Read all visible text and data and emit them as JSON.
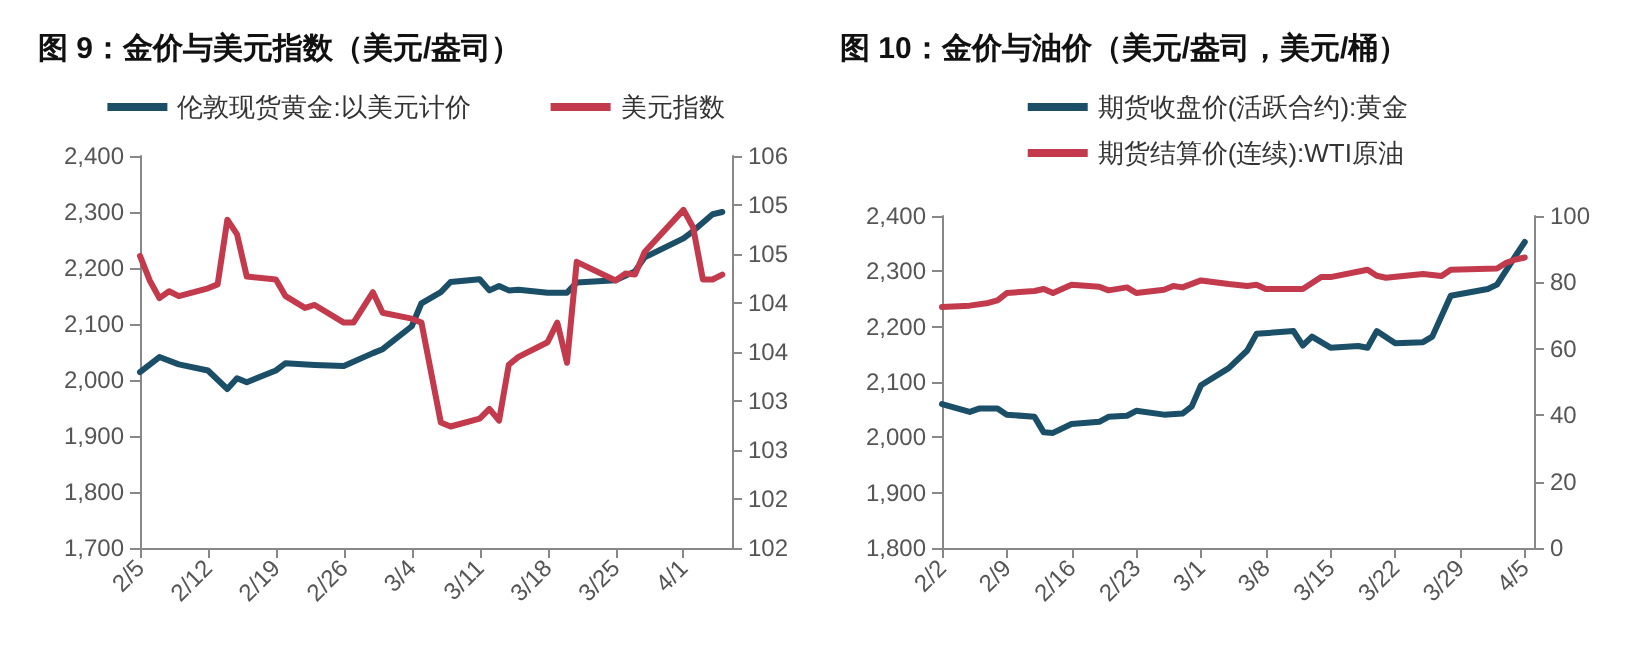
{
  "chart_data": [
    {
      "type": "line",
      "title": "图 9：金价与美元指数（美元/盎司）",
      "legend": "top",
      "grid": false,
      "marker": "none",
      "line_style": "solid",
      "xlim": [
        "--02-05",
        "--04-06"
      ],
      "xticks": [
        {
          "value": "--02-05",
          "label": "2/5"
        },
        {
          "value": "--02-12",
          "label": "2/12"
        },
        {
          "value": "--02-19",
          "label": "2/19"
        },
        {
          "value": "--02-26",
          "label": "2/26"
        },
        {
          "value": "--03-04",
          "label": "3/4"
        },
        {
          "value": "--03-11",
          "label": "3/11"
        },
        {
          "value": "--03-18",
          "label": "3/18"
        },
        {
          "value": "--03-25",
          "label": "3/25"
        },
        {
          "value": "--04-01",
          "label": "4/1"
        }
      ],
      "ylim": [
        1700,
        2400
      ],
      "yticks": [
        {
          "value": 1700,
          "label": "1,700"
        },
        {
          "value": 1800,
          "label": "1,800"
        },
        {
          "value": 1900,
          "label": "1,900"
        },
        {
          "value": 2000,
          "label": "2,000"
        },
        {
          "value": 2100,
          "label": "2,100"
        },
        {
          "value": 2200,
          "label": "2,200"
        },
        {
          "value": 2300,
          "label": "2,300"
        },
        {
          "value": 2400,
          "label": "2,400"
        }
      ],
      "y2lim": [
        102,
        106
      ],
      "y2ticks": [
        102,
        {
          "value": 102.5,
          "label": "102"
        },
        103,
        {
          "value": 103.5,
          "label": "103"
        },
        104,
        {
          "value": 104.5,
          "label": "104"
        },
        105,
        {
          "value": 105.5,
          "label": "105"
        },
        106
      ],
      "series": [
        {
          "name": "伦敦现货黄金:以美元计价",
          "color": "#1b4f68",
          "x": [
            "--02-05",
            "--02-07",
            "--02-09",
            "--02-12",
            "--02-14",
            "--02-15",
            "--02-16",
            "--02-19",
            "--02-20",
            "--02-23",
            "--02-26",
            "--02-29",
            "--03-01",
            "--03-04",
            "--03-05",
            "--03-07",
            "--03-08",
            "--03-11",
            "--03-12",
            "--03-13",
            "--03-14",
            "--03-15",
            "--03-18",
            "--03-20",
            "--03-21",
            "--03-25",
            "--03-27",
            "--03-28",
            "--04-01",
            "--04-02",
            "--04-04",
            "--04-05"
          ],
          "values": [
            2014,
            2041,
            2028,
            2017,
            1984,
            2003,
            1996,
            2017,
            2030,
            2027,
            2025,
            2048,
            2055,
            2096,
            2137,
            2157,
            2175,
            2180,
            2160,
            2168,
            2160,
            2161,
            2156,
            2156,
            2174,
            2178,
            2194,
            2219,
            2253,
            2266,
            2296,
            2300
          ]
        },
        {
          "name": "美元指数",
          "color": "#c23a4c",
          "axis": "y2",
          "x": [
            "--02-05",
            "--02-06",
            "--02-07",
            "--02-08",
            "--02-09",
            "--02-12",
            "--02-13",
            "--02-14",
            "--02-15",
            "--02-16",
            "--02-19",
            "--02-20",
            "--02-22",
            "--02-23",
            "--02-26",
            "--02-27",
            "--02-29",
            "--03-01",
            "--03-04",
            "--03-05",
            "--03-07",
            "--03-08",
            "--03-11",
            "--03-12",
            "--03-13",
            "--03-14",
            "--03-15",
            "--03-18",
            "--03-19",
            "--03-20",
            "--03-21",
            "--03-25",
            "--03-26",
            "--03-27",
            "--03-28",
            "--04-01",
            "--04-02",
            "--04-03",
            "--04-04",
            "--04-05"
          ],
          "values": [
            104.98,
            104.73,
            104.55,
            104.62,
            104.57,
            104.65,
            104.69,
            105.35,
            105.2,
            104.77,
            104.74,
            104.57,
            104.45,
            104.48,
            104.3,
            104.3,
            104.61,
            104.4,
            104.34,
            104.3,
            103.28,
            103.24,
            103.32,
            103.42,
            103.3,
            103.87,
            103.95,
            104.1,
            104.3,
            103.89,
            104.92,
            104.73,
            104.8,
            104.79,
            105.02,
            105.45,
            105.27,
            104.74,
            104.74,
            104.79
          ]
        }
      ]
    },
    {
      "type": "line",
      "title": "图 10：金价与油价（美元/盎司，美元/桶）",
      "legend": "top",
      "grid": false,
      "marker": "none",
      "line_style": "solid",
      "xlim": [
        "--02-02",
        "--04-06"
      ],
      "xticks": [
        {
          "value": "--02-02",
          "label": "2/2"
        },
        {
          "value": "--02-09",
          "label": "2/9"
        },
        {
          "value": "--02-16",
          "label": "2/16"
        },
        {
          "value": "--02-23",
          "label": "2/23"
        },
        {
          "value": "--03-01",
          "label": "3/1"
        },
        {
          "value": "--03-08",
          "label": "3/8"
        },
        {
          "value": "--03-15",
          "label": "3/15"
        },
        {
          "value": "--03-22",
          "label": "3/22"
        },
        {
          "value": "--03-29",
          "label": "3/29"
        },
        {
          "value": "--04-05",
          "label": "4/5"
        }
      ],
      "ylim": [
        1800,
        2400
      ],
      "yticks": [
        {
          "value": 1800,
          "label": "1,800"
        },
        {
          "value": 1900,
          "label": "1,900"
        },
        {
          "value": 2000,
          "label": "2,000"
        },
        {
          "value": 2100,
          "label": "2,100"
        },
        {
          "value": 2200,
          "label": "2,200"
        },
        {
          "value": 2300,
          "label": "2,300"
        },
        {
          "value": 2400,
          "label": "2,400"
        }
      ],
      "y2lim": [
        0,
        100
      ],
      "y2ticks": [
        0,
        20,
        40,
        60,
        80,
        100
      ],
      "series": [
        {
          "name": "期货收盘价(活跃合约):黄金",
          "color": "#1b4f68",
          "x": [
            "--02-02",
            "--02-05",
            "--02-06",
            "--02-08",
            "--02-09",
            "--02-12",
            "--02-13",
            "--02-14",
            "--02-16",
            "--02-19",
            "--02-20",
            "--02-22",
            "--02-23",
            "--02-26",
            "--02-28",
            "--02-29",
            "--03-01",
            "--03-04",
            "--03-06",
            "--03-07",
            "--03-11",
            "--03-12",
            "--03-13",
            "--03-15",
            "--03-18",
            "--03-19",
            "--03-20",
            "--03-22",
            "--03-25",
            "--03-26",
            "--03-28",
            "--04-01",
            "--04-02",
            "--04-04",
            "--04-05"
          ],
          "values": [
            2060,
            2046,
            2052,
            2052,
            2041,
            2037,
            2009,
            2008,
            2024,
            2028,
            2037,
            2039,
            2048,
            2041,
            2043,
            2056,
            2094,
            2125,
            2157,
            2187,
            2192,
            2166,
            2182,
            2162,
            2165,
            2162,
            2192,
            2170,
            2172,
            2182,
            2256,
            2268,
            2276,
            2328,
            2353
          ]
        },
        {
          "name": "期货结算价(连续):WTI原油",
          "color": "#c23a4c",
          "axis": "y2",
          "x": [
            "--02-02",
            "--02-05",
            "--02-07",
            "--02-08",
            "--02-09",
            "--02-12",
            "--02-13",
            "--02-14",
            "--02-16",
            "--02-19",
            "--02-20",
            "--02-22",
            "--02-23",
            "--02-26",
            "--02-27",
            "--02-28",
            "--03-01",
            "--03-04",
            "--03-06",
            "--03-07",
            "--03-08",
            "--03-12",
            "--03-14",
            "--03-15",
            "--03-19",
            "--03-20",
            "--03-21",
            "--03-25",
            "--03-27",
            "--03-28",
            "--04-02",
            "--04-03",
            "--04-04",
            "--04-05"
          ],
          "values": [
            72.6,
            73,
            73.8,
            74.6,
            76.8,
            77.4,
            78,
            76.8,
            79.3,
            78.7,
            77.6,
            78.5,
            76.8,
            77.8,
            78.9,
            78.5,
            80.6,
            79.5,
            78.9,
            79.3,
            78,
            78,
            81.6,
            81.6,
            83.8,
            82,
            81.4,
            82.5,
            81.9,
            83.8,
            84.2,
            85.9,
            86.9,
            87.5
          ]
        }
      ]
    }
  ]
}
